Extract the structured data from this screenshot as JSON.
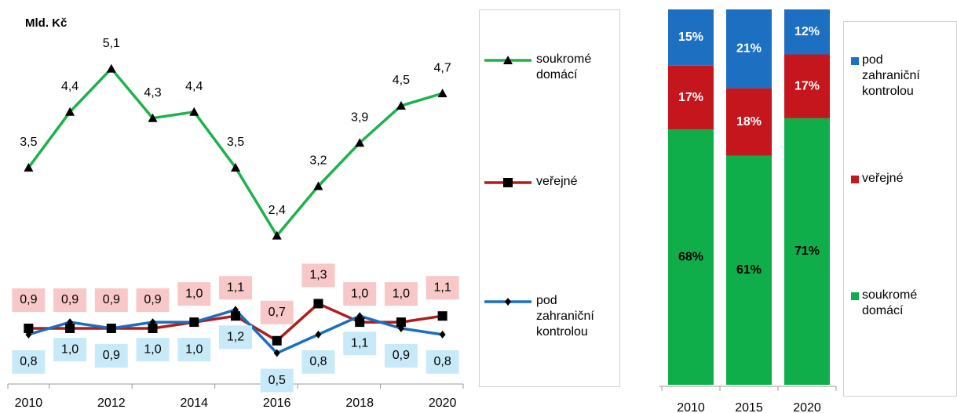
{
  "chart_data": [
    {
      "type": "line",
      "y_label": "Mld. Kč",
      "categories": [
        "2010",
        null,
        "2012",
        null,
        "2014",
        null,
        "2016",
        null,
        "2018",
        null,
        "2020"
      ],
      "ylim": [
        0,
        5.5
      ],
      "series": [
        {
          "name": "soukromé domácí",
          "color": "#1fb14b",
          "marker": "triangle",
          "values": [
            3.5,
            4.4,
            5.1,
            4.3,
            4.4,
            3.5,
            2.4,
            3.2,
            3.9,
            4.5,
            4.7
          ],
          "value_labels": [
            "3,5",
            "4,4",
            "5,1",
            "4,3",
            "4,4",
            "3,5",
            "2,4",
            "3,2",
            "3,9",
            "4,5",
            "4,7"
          ]
        },
        {
          "name": "veřejné",
          "color": "#b01c1c",
          "marker": "square",
          "values": [
            0.9,
            0.9,
            0.9,
            0.9,
            1.0,
            1.1,
            0.7,
            1.3,
            1.0,
            1.0,
            1.1
          ],
          "value_labels": [
            "0,9",
            "0,9",
            "0,9",
            "0,9",
            "1,0",
            "1,1",
            "0,7",
            "1,3",
            "1,0",
            "1,0",
            "1,1"
          ]
        },
        {
          "name": "pod zahraniční kontrolou",
          "color": "#1a6fc0",
          "marker": "diamond",
          "values": [
            0.8,
            1.0,
            0.9,
            1.0,
            1.0,
            1.2,
            0.5,
            0.8,
            1.1,
            0.9,
            0.8
          ],
          "value_labels": [
            "0,8",
            "1,0",
            "0,9",
            "1,0",
            "1,0",
            "1,2",
            "0,5",
            "0,8",
            "1,1",
            "0,9",
            "0,8"
          ]
        }
      ]
    },
    {
      "type": "stacked_bar",
      "categories": [
        "2010",
        "2015",
        "2020"
      ],
      "ylim": [
        0,
        100
      ],
      "series": [
        {
          "name": "soukromé domácí",
          "color": "#0fae4b",
          "values": [
            68,
            61,
            71
          ],
          "value_labels": [
            "68%",
            "61%",
            "71%"
          ]
        },
        {
          "name": "veřejné",
          "color": "#c4161c",
          "values": [
            17,
            18,
            17
          ],
          "value_labels": [
            "17%",
            "18%",
            "17%"
          ]
        },
        {
          "name": "pod zahraniční kontrolou",
          "color": "#1d6fc2",
          "values": [
            15,
            21,
            12
          ],
          "value_labels": [
            "15%",
            "21%",
            "12%"
          ]
        }
      ]
    }
  ]
}
